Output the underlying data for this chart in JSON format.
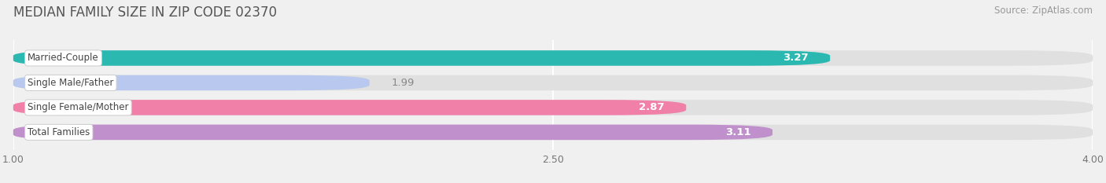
{
  "title": "MEDIAN FAMILY SIZE IN ZIP CODE 02370",
  "source": "Source: ZipAtlas.com",
  "categories": [
    "Married-Couple",
    "Single Male/Father",
    "Single Female/Mother",
    "Total Families"
  ],
  "values": [
    3.27,
    1.99,
    2.87,
    3.11
  ],
  "bar_colors": [
    "#2ab8b0",
    "#b8c8ee",
    "#f080a8",
    "#c090cc"
  ],
  "value_label_colors": [
    "white",
    "#888888",
    "white",
    "white"
  ],
  "xmin": 1.0,
  "xmax": 4.0,
  "xticks": [
    1.0,
    2.5,
    4.0
  ],
  "bar_height": 0.62,
  "figsize": [
    14.06,
    2.33
  ],
  "dpi": 100,
  "title_fontsize": 12,
  "source_fontsize": 8.5,
  "bar_label_fontsize": 9.5,
  "category_fontsize": 8.5,
  "tick_fontsize": 9,
  "background_color": "#f0f0f0",
  "bar_background_color": "#e0e0e0",
  "grid_color": "#ffffff",
  "track_rounding": 0.22
}
